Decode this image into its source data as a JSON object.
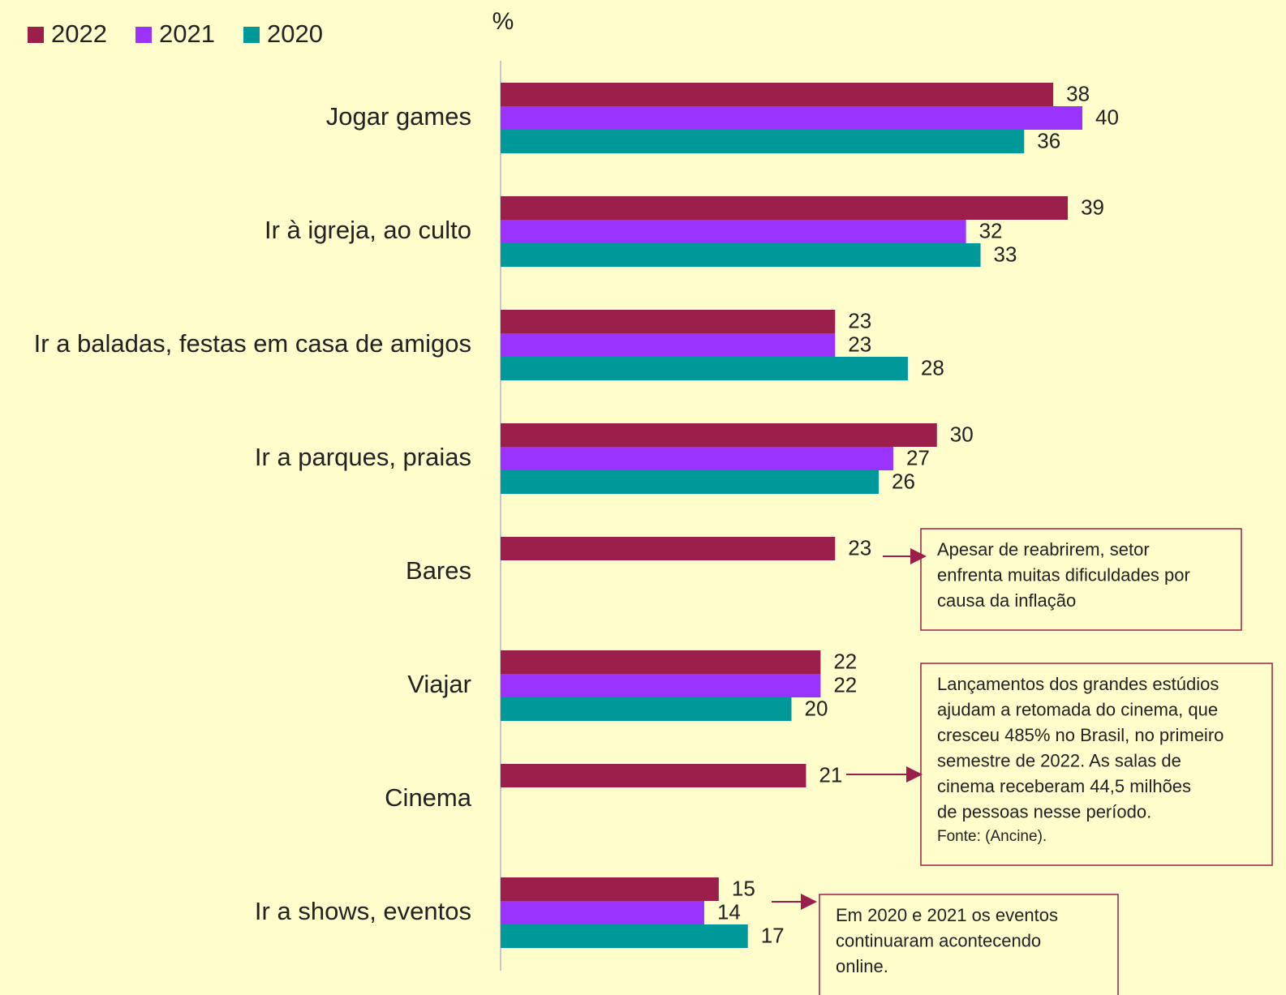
{
  "chart_data": {
    "type": "bar",
    "orientation": "horizontal",
    "unit_label": "%",
    "categories": [
      "Jogar games",
      "Ir à igreja, ao culto",
      "Ir a baladas, festas em casa de amigos",
      "Ir a parques, praias",
      "Bares",
      "Viajar",
      "Cinema",
      "Ir a shows, eventos"
    ],
    "series": [
      {
        "name": "2022",
        "color": "#9b1f4b",
        "values": [
          38,
          39,
          23,
          30,
          23,
          22,
          21,
          15
        ]
      },
      {
        "name": "2021",
        "color": "#9b33ff",
        "values": [
          40,
          32,
          23,
          27,
          null,
          22,
          null,
          14
        ]
      },
      {
        "name": "2020",
        "color": "#009999",
        "values": [
          36,
          33,
          28,
          26,
          null,
          20,
          null,
          17
        ]
      }
    ],
    "xlim": [
      0,
      40
    ],
    "legend": "top-left",
    "annotations": [
      {
        "lines": [
          "Apesar de reabrirem, setor",
          "enfrenta muitas dificuldades por",
          "causa da inflação"
        ]
      },
      {
        "lines": [
          "Lançamentos dos grandes estúdios",
          "ajudam a retomada do cinema, que",
          "cresceu 485% no Brasil, no primeiro",
          "semestre de 2022. As salas de",
          "cinema  receberam 44,5 milhões",
          "de pessoas nesse período.",
          "Fonte: (Ancine)."
        ]
      },
      {
        "lines": [
          "Em 2020 e 2021 os eventos",
          "continuaram acontecendo",
          "online."
        ]
      }
    ]
  }
}
